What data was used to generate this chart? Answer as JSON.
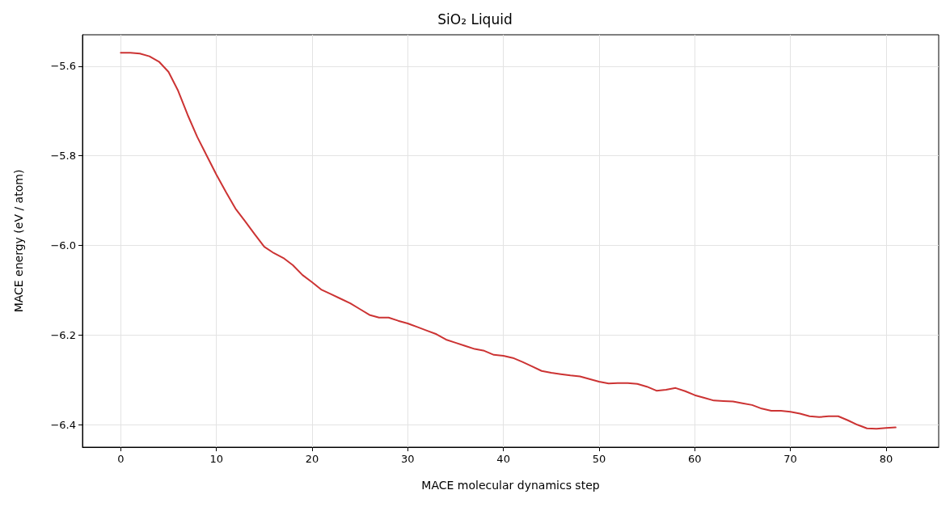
{
  "chart_data": {
    "type": "line",
    "title": "SiO₂ Liquid",
    "xlabel": "MACE molecular dynamics step",
    "ylabel": "MACE energy (eV / atom)",
    "x": [
      0,
      1,
      2,
      3,
      4,
      5,
      6,
      7,
      8,
      9,
      10,
      11,
      12,
      13,
      14,
      15,
      16,
      17,
      18,
      19,
      20,
      21,
      22,
      23,
      24,
      25,
      26,
      27,
      28,
      29,
      30,
      31,
      32,
      33,
      34,
      35,
      36,
      37,
      38,
      39,
      40,
      41,
      42,
      43,
      44,
      45,
      46,
      47,
      48,
      49,
      50,
      51,
      52,
      53,
      54,
      55,
      56,
      57,
      58,
      59,
      60,
      61,
      62,
      63,
      64,
      65,
      66,
      67,
      68,
      69,
      70,
      71,
      72,
      73,
      74,
      75,
      76,
      77,
      78,
      79,
      80,
      81
    ],
    "series": [
      {
        "color": "#cc3333",
        "values": [
          -5.57,
          -5.57,
          -5.572,
          -5.578,
          -5.59,
          -5.613,
          -5.655,
          -5.709,
          -5.758,
          -5.8,
          -5.842,
          -5.881,
          -5.918,
          -5.946,
          -5.975,
          -6.003,
          -6.017,
          -6.028,
          -6.044,
          -6.066,
          -6.082,
          -6.099,
          -6.109,
          -6.119,
          -6.129,
          -6.142,
          -6.155,
          -6.161,
          -6.161,
          -6.168,
          -6.174,
          -6.182,
          -6.19,
          -6.198,
          -6.21,
          -6.217,
          -6.224,
          -6.231,
          -6.235,
          -6.244,
          -6.246,
          -6.251,
          -6.26,
          -6.27,
          -6.28,
          -6.284,
          -6.287,
          -6.29,
          -6.292,
          -6.298,
          -6.304,
          -6.308,
          -6.307,
          -6.307,
          -6.309,
          -6.315,
          -6.324,
          -6.322,
          -6.318,
          -6.325,
          -6.334,
          -6.34,
          -6.346,
          -6.347,
          -6.348,
          -6.352,
          -6.356,
          -6.364,
          -6.369,
          -6.369,
          -6.371,
          -6.375,
          -6.381,
          -6.383,
          -6.381,
          -6.381,
          -6.39,
          -6.4,
          -6.408,
          -6.409,
          -6.407,
          -6.406
        ]
      }
    ],
    "xlim": [
      -4,
      85.5
    ],
    "xticks": [
      0,
      10,
      20,
      30,
      40,
      50,
      60,
      70,
      80
    ],
    "ylim": [
      -6.45,
      -5.53
    ],
    "yticks": [
      -6.4,
      -6.2,
      {
        "value": -6,
        "label": "−6.0"
      },
      -5.8,
      -5.6
    ],
    "grid": true,
    "legend": false,
    "marker": "none",
    "line_style": "solid"
  }
}
